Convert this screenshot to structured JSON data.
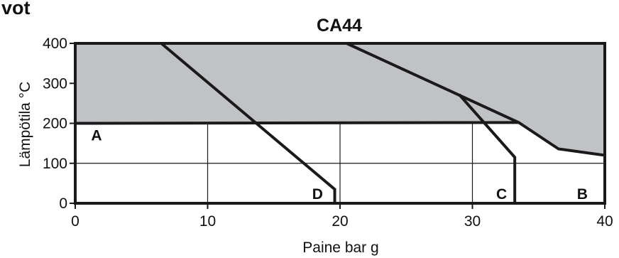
{
  "corner_text": "vot",
  "chart_data": {
    "type": "line",
    "title": "CA44",
    "xlabel": "Paine bar g",
    "ylabel": "Lämpötila °C",
    "xlim": [
      0,
      40
    ],
    "ylim": [
      0,
      400
    ],
    "xticks": [
      0,
      10,
      20,
      30,
      40
    ],
    "yticks": [
      0,
      100,
      200,
      300,
      400
    ],
    "grid_x": [
      10,
      20,
      30
    ],
    "grid_y": [
      100,
      200
    ],
    "colors": {
      "shade": "#c1c2c5",
      "line": "#1a1a1a",
      "grid": "#1a1a1a"
    },
    "shaded_region": {
      "label": "",
      "polygon": [
        [
          0,
          200
        ],
        [
          0,
          400
        ],
        [
          40,
          400
        ],
        [
          40,
          120
        ],
        [
          36.5,
          136
        ],
        [
          33.5,
          202
        ],
        [
          0,
          200
        ]
      ]
    },
    "region_a_boundary": {
      "x": [
        0,
        33.5
      ],
      "y": [
        200,
        202
      ]
    },
    "series": [
      {
        "label": "B",
        "x": [
          20.5,
          33.5,
          36.5,
          40
        ],
        "y": [
          400,
          202,
          136,
          120
        ],
        "label_pos": [
          38.3,
          25
        ]
      },
      {
        "label": "C",
        "x": [
          29.0,
          33.2,
          33.2
        ],
        "y": [
          272,
          115,
          0
        ],
        "label_pos": [
          32.2,
          25
        ]
      },
      {
        "label": "D",
        "x": [
          6.5,
          19.6,
          19.6
        ],
        "y": [
          400,
          35,
          0
        ],
        "label_pos": [
          18.3,
          25
        ]
      }
    ],
    "region_labels": [
      {
        "label": "A",
        "x": 1.2,
        "y": 172
      }
    ]
  }
}
